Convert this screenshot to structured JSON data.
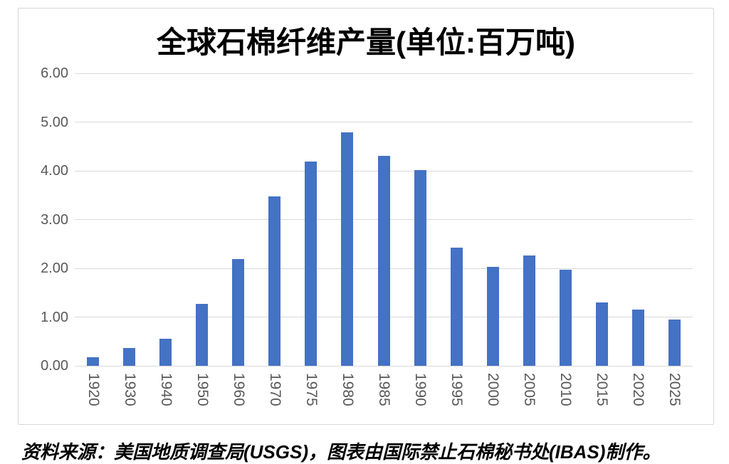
{
  "chart": {
    "title": "全球石棉纤维产量(单位:百万吨)",
    "source_note": "资料来源：美国地质调查局(USGS)，图表由国际禁止石棉秘书处(IBAS)制作。"
  },
  "chart_data": {
    "type": "bar",
    "title": "全球石棉纤维产量(单位:百万吨)",
    "categories": [
      "1920",
      "1930",
      "1940",
      "1950",
      "1960",
      "1970",
      "1975",
      "1980",
      "1985",
      "1990",
      "1995",
      "2000",
      "2005",
      "2010",
      "2015",
      "2020",
      "2025"
    ],
    "values": [
      0.18,
      0.37,
      0.55,
      1.27,
      2.19,
      3.48,
      4.19,
      4.79,
      4.31,
      4.01,
      2.43,
      2.03,
      2.26,
      1.97,
      1.3,
      1.15,
      0.95
    ],
    "xlabel": "",
    "ylabel": "",
    "ylim": [
      0,
      6
    ],
    "ytick_values": [
      0,
      1,
      2,
      3,
      4,
      5,
      6
    ],
    "ytick_labels": [
      "0.00",
      "1.00",
      "2.00",
      "3.00",
      "4.00",
      "5.00",
      "6.00"
    ],
    "x_tick_rotation_deg": 90,
    "grid": true,
    "legend_position": "none",
    "colors": {
      "bar": "#4472c4",
      "gridline": "#d9d9d9",
      "axis_labels": "#595959",
      "title": "#000000",
      "frame_border": "#d6d6d6",
      "background": "#ffffff"
    }
  }
}
